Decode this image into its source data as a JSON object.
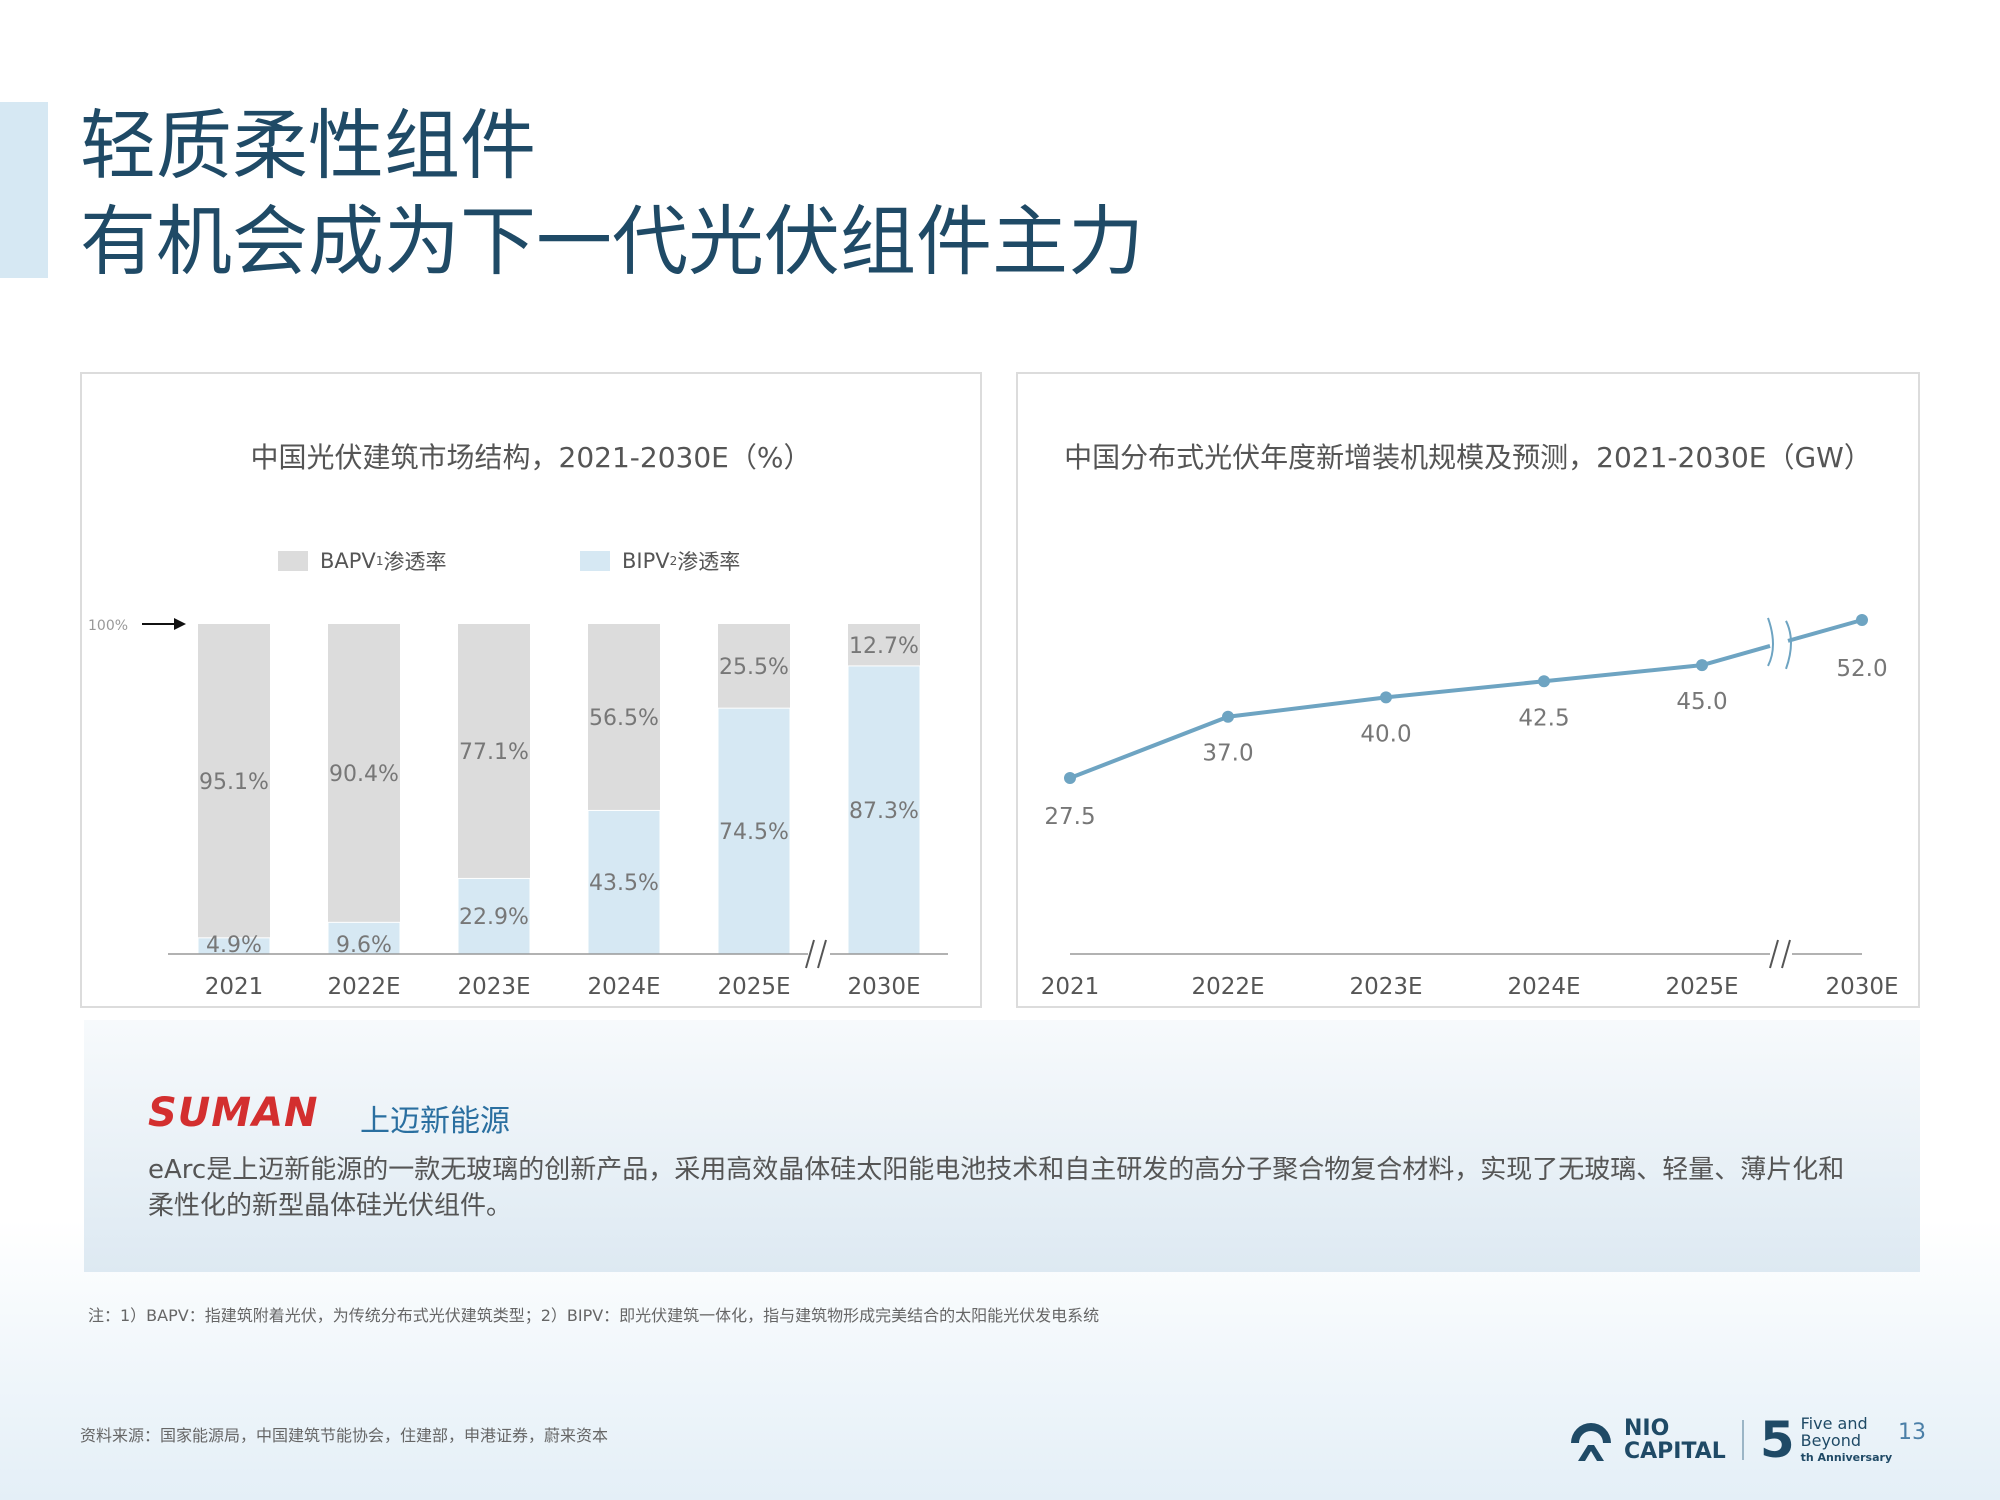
{
  "title": {
    "line1": "轻质柔性组件",
    "line2": "有机会成为下一代光伏组件主力"
  },
  "left_chart": {
    "title": "中国光伏建筑市场结构，2021-2030E（%）",
    "legend": [
      {
        "label": "BAPV",
        "sup": "1",
        "suffix": " 渗透率",
        "color": "#dcdcdc"
      },
      {
        "label": "BIPV",
        "sup": "2",
        "suffix": " 渗透率",
        "color": "#d6e8f3"
      }
    ],
    "hundred_label": "100%"
  },
  "right_chart": {
    "title": "中国分布式光伏年度新增装机规模及预测，2021-2030E（GW）"
  },
  "chart_data": [
    {
      "type": "bar",
      "stacked": true,
      "title": "中国光伏建筑市场结构，2021-2030E（%）",
      "categories": [
        "2021",
        "2022E",
        "2023E",
        "2024E",
        "2025E",
        "2030E"
      ],
      "series": [
        {
          "name": "BIPV² 渗透率",
          "values": [
            4.9,
            9.6,
            22.9,
            43.5,
            74.5,
            87.3
          ],
          "labels": [
            "4.9%",
            "9.6%",
            "22.9%",
            "43.5%",
            "74.5%",
            "87.3%"
          ],
          "color": "#d6e8f3"
        },
        {
          "name": "BAPV¹ 渗透率",
          "values": [
            95.1,
            90.4,
            77.1,
            56.5,
            25.5,
            12.7
          ],
          "labels": [
            "95.1%",
            "90.4%",
            "77.1%",
            "56.5%",
            "25.5%",
            "12.7%"
          ],
          "color": "#dcdcdc"
        }
      ],
      "ylim": [
        0,
        100
      ],
      "axis_break_after": "2025E",
      "legend_position": "top"
    },
    {
      "type": "line",
      "title": "中国分布式光伏年度新增装机规模及预测，2021-2030E（GW）",
      "categories": [
        "2021",
        "2022E",
        "2023E",
        "2024E",
        "2025E",
        "2030E"
      ],
      "series": [
        {
          "values": [
            27.5,
            37.0,
            40.0,
            42.5,
            45.0,
            52.0
          ],
          "labels": [
            "27.5",
            "37.0",
            "40.0",
            "42.5",
            "45.0",
            "52.0"
          ],
          "color": "#6ea4c2"
        }
      ],
      "axis_break_after": "2025E"
    }
  ],
  "company": {
    "logo_text": "SUMAN",
    "name_cn": "上迈新能源",
    "description": "eArc是上迈新能源的一款无玻璃的创新产品，采用高效晶体硅太阳能电池技术和自主研发的高分子聚合物复合材料，实现了无玻璃、轻量、薄片化和柔性化的新型晶体硅光伏组件。"
  },
  "footnote": "注：1）BAPV：指建筑附着光伏，为传统分布式光伏建筑类型；2）BIPV：即光伏建筑一体化，指与建筑物形成完美结合的太阳能光伏发电系统",
  "source": "资料来源：国家能源局，中国建筑节能协会，住建部，申港证券，蔚来资本",
  "brand": {
    "nio_line1": "NIO",
    "nio_line2": "CAPITAL",
    "five": "5",
    "anniv_line1": "Five and",
    "anniv_line2": "Beyond",
    "anniv_line3": "th Anniversary",
    "page_number": "13"
  }
}
